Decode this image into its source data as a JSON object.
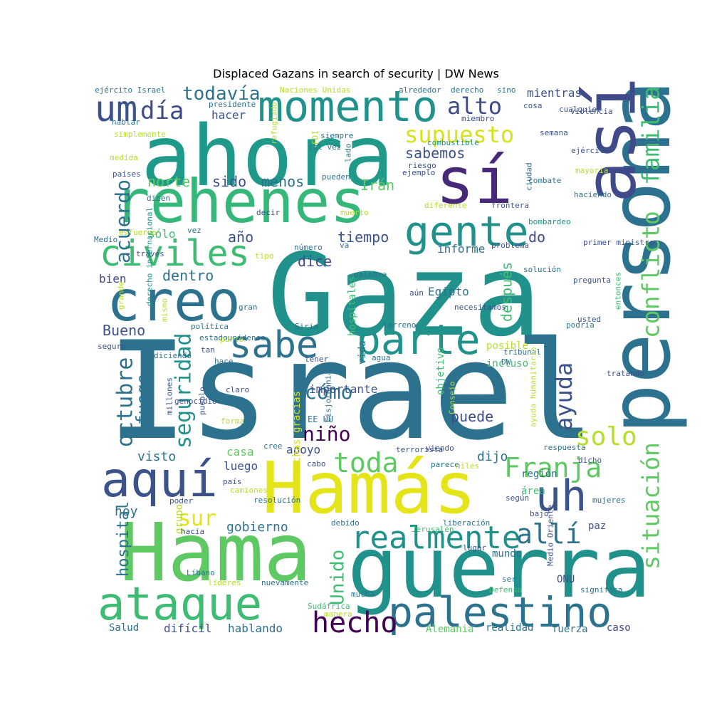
{
  "chart_data": {
    "type": "wordcloud",
    "title": "Displaced Gazans in search of security | DW News",
    "palette": [
      "#440154",
      "#3b528b",
      "#21918c",
      "#5ec962",
      "#fde725"
    ],
    "words": [
      {
        "t": "Israel",
        "c": "#2c728e",
        "h": 0
      },
      {
        "t": "Gaza",
        "c": "#21918c",
        "h": 0
      },
      {
        "t": "Hamás",
        "c": "#e5e419",
        "h": 0
      },
      {
        "t": "ahora",
        "c": "#1f9a8a",
        "h": 0
      },
      {
        "t": "Hama",
        "c": "#5ec962",
        "h": 0
      },
      {
        "t": "guerra",
        "c": "#21918c",
        "h": 0
      },
      {
        "t": "persona",
        "c": "#2c728e",
        "h": 1
      },
      {
        "t": "rehenes",
        "c": "#35b779",
        "h": 0
      },
      {
        "t": "sí",
        "c": "#482878",
        "h": 0
      },
      {
        "t": "así",
        "c": "#3e4a89",
        "h": 1
      },
      {
        "t": "creo",
        "c": "#2c728e",
        "h": 0
      },
      {
        "t": "momento",
        "c": "#21918c",
        "h": 0
      },
      {
        "t": "ataque",
        "c": "#3fbc73",
        "h": 0
      },
      {
        "t": "palestino",
        "c": "#2c728e",
        "h": 0
      },
      {
        "t": "aquí",
        "c": "#3b528b",
        "h": 0
      },
      {
        "t": "civiles",
        "c": "#3fbc73",
        "h": 0
      },
      {
        "t": "parte",
        "c": "#21918c",
        "h": 0
      },
      {
        "t": "sabe",
        "c": "#2c728e",
        "h": 0
      },
      {
        "t": "gente",
        "c": "#21918c",
        "h": 0
      },
      {
        "t": "uh",
        "c": "#3b528b",
        "h": 0
      },
      {
        "t": "um",
        "c": "#3b528b",
        "h": 0
      },
      {
        "t": "realmente",
        "c": "#21918c",
        "h": 0
      },
      {
        "t": "conflicto",
        "c": "#5ec962",
        "h": 1
      },
      {
        "t": "familia",
        "c": "#3fbc73",
        "h": 1
      },
      {
        "t": "situación",
        "c": "#5ec962",
        "h": 1
      },
      {
        "t": "Franja",
        "c": "#5ec962",
        "h": 0
      },
      {
        "t": "allí",
        "c": "#2c728e",
        "h": 0
      },
      {
        "t": "hecho",
        "c": "#440154",
        "h": 0
      },
      {
        "t": "toda",
        "c": "#5ec962",
        "h": 0
      },
      {
        "t": "solo",
        "c": "#b5de2b",
        "h": 0
      },
      {
        "t": "ayuda",
        "c": "#3b528b",
        "h": 1
      },
      {
        "t": "octubre",
        "c": "#2c728e",
        "h": 1
      },
      {
        "t": "seguridad",
        "c": "#21918c",
        "h": 1
      },
      {
        "t": "supuesto",
        "c": "#d8e219",
        "h": 0
      },
      {
        "t": "alto",
        "c": "#3e4a89",
        "h": 0
      },
      {
        "t": "día",
        "c": "#3e4a89",
        "h": 0
      },
      {
        "t": "todavía",
        "c": "#2c728e",
        "h": 0
      },
      {
        "t": "acuerdo",
        "c": "#2c728e",
        "h": 1
      },
      {
        "t": "sur",
        "c": "#e5e419",
        "h": 0
      },
      {
        "t": "niño",
        "c": "#440154",
        "h": 0
      },
      {
        "t": "cómo",
        "c": "#2c728e",
        "h": 0
      },
      {
        "t": "Unido",
        "c": "#3fbc73",
        "h": 1
      },
      {
        "t": "fuego",
        "c": "#2c728e",
        "h": 1
      },
      {
        "t": "hospital",
        "c": "#2c728e",
        "h": 1
      },
      {
        "t": "sabemos",
        "c": "#3b528b",
        "h": 0
      },
      {
        "t": "norte",
        "c": "#5ec962",
        "h": 0
      },
      {
        "t": "sido",
        "c": "#3b528b",
        "h": 0
      },
      {
        "t": "menos",
        "c": "#2c728e",
        "h": 0
      },
      {
        "t": "Irán",
        "c": "#5ec962",
        "h": 0
      },
      {
        "t": "tiempo",
        "c": "#3b528b",
        "h": 0
      },
      {
        "t": "año",
        "c": "#3b528b",
        "h": 0
      },
      {
        "t": "dice",
        "c": "#3e4a89",
        "h": 0
      },
      {
        "t": "dentro",
        "c": "#2c728e",
        "h": 0
      },
      {
        "t": "Bueno",
        "c": "#3b528b",
        "h": 0
      },
      {
        "t": "gobierno",
        "c": "#2c728e",
        "h": 0
      },
      {
        "t": "hoy",
        "c": "#2c728e",
        "h": 0
      },
      {
        "t": "visto",
        "c": "#2c728e",
        "h": 0
      },
      {
        "t": "puede",
        "c": "#3e4a89",
        "h": 0
      },
      {
        "t": "dijo",
        "c": "#2c728e",
        "h": 0
      },
      {
        "t": "mientras",
        "c": "#3b528b",
        "h": 0
      },
      {
        "t": "después",
        "c": "#3fbc73",
        "h": 1
      },
      {
        "t": "do",
        "c": "#3e4a89",
        "h": 0
      },
      {
        "t": "importante",
        "c": "#3b528b",
        "h": 0
      },
      {
        "t": "apoyo",
        "c": "#3b528b",
        "h": 0
      },
      {
        "t": "luego",
        "c": "#3b528b",
        "h": 0
      },
      {
        "t": "casa",
        "c": "#5ec962",
        "h": 0
      },
      {
        "t": "informe",
        "c": "#2c728e",
        "h": 0
      },
      {
        "t": "Egipto",
        "c": "#2c728e",
        "h": 0
      },
      {
        "t": "hacer",
        "c": "#3b528b",
        "h": 0
      },
      {
        "t": "sólo",
        "c": "#3fbc73",
        "h": 0
      },
      {
        "t": "bien",
        "c": "#3e4a89",
        "h": 0
      },
      {
        "t": "hablando",
        "c": "#2c728e",
        "h": 0
      },
      {
        "t": "difícil",
        "c": "#3b528b",
        "h": 0
      },
      {
        "t": "Alemania",
        "c": "#5ec962",
        "h": 0
      },
      {
        "t": "fuerza",
        "c": "#2c728e",
        "h": 0
      },
      {
        "t": "caso",
        "c": "#3e4a89",
        "h": 0
      },
      {
        "t": "ONU",
        "c": "#3b528b",
        "h": 0
      },
      {
        "t": "mundo",
        "c": "#2c728e",
        "h": 0
      },
      {
        "t": "posible",
        "c": "#b5de2b",
        "h": 0
      },
      {
        "t": "incluso",
        "c": "#3fbc73",
        "h": 0
      },
      {
        "t": "región",
        "c": "#2c728e",
        "h": 0
      },
      {
        "t": "área",
        "c": "#3fbc73",
        "h": 0
      },
      {
        "t": "paz",
        "c": "#3b528b",
        "h": 0
      },
      {
        "t": "grupo",
        "c": "#b5de2b",
        "h": 1
      },
      {
        "t": "vida",
        "c": "#2c728e",
        "h": 1
      },
      {
        "t": "objetivo",
        "c": "#3fbc73",
        "h": 1
      },
      {
        "t": "hospitales",
        "c": "#3fbc73",
        "h": 1
      },
      {
        "t": "muchas gracias",
        "c": "#d8e219",
        "h": 1
      },
      {
        "t": "EE UU",
        "c": "#2c728e",
        "h": 0
      },
      {
        "t": "ejército Israel",
        "c": "#2c728e",
        "h": 0
      },
      {
        "t": "Naciones Unidas",
        "c": "#b5de2b",
        "h": 0
      },
      {
        "t": "alrededor",
        "c": "#2c728e",
        "h": 0
      },
      {
        "t": "derecho",
        "c": "#2c728e",
        "h": 0
      },
      {
        "t": "sino",
        "c": "#2c728e",
        "h": 0
      },
      {
        "t": "cosa",
        "c": "#3b528b",
        "h": 0
      },
      {
        "t": "cualquier",
        "c": "#3b528b",
        "h": 0
      },
      {
        "t": "violencia",
        "c": "#3b528b",
        "h": 0
      },
      {
        "t": "presidente",
        "c": "#2c728e",
        "h": 0
      },
      {
        "t": "miembro",
        "c": "#3b528b",
        "h": 0
      },
      {
        "t": "hablar",
        "c": "#2c728e",
        "h": 0
      },
      {
        "t": "simplemente",
        "c": "#b5de2b",
        "h": 0
      },
      {
        "t": "refugiado",
        "c": "#b5de2b",
        "h": 1
      },
      {
        "t": "siempre",
        "c": "#2c728e",
        "h": 0
      },
      {
        "t": "combustible",
        "c": "#21918c",
        "h": 0
      },
      {
        "t": "semana",
        "c": "#3b528b",
        "h": 0
      },
      {
        "t": "FDI",
        "c": "#b5de2b",
        "h": 1
      },
      {
        "t": "lado",
        "c": "#2c728e",
        "h": 1
      },
      {
        "t": "tal vez",
        "c": "#2c728e",
        "h": 0
      },
      {
        "t": "ejército",
        "c": "#3b528b",
        "h": 0
      },
      {
        "t": "medida",
        "c": "#b5de2b",
        "h": 0
      },
      {
        "t": "riesgo",
        "c": "#3b528b",
        "h": 0
      },
      {
        "t": "ciudad",
        "c": "#2c728e",
        "h": 1
      },
      {
        "t": "mayoría",
        "c": "#b5de2b",
        "h": 0
      },
      {
        "t": "países",
        "c": "#3b528b",
        "h": 0
      },
      {
        "t": "ejemplo",
        "c": "#3b528b",
        "h": 0
      },
      {
        "t": "pueden",
        "c": "#2c728e",
        "h": 0
      },
      {
        "t": "combate",
        "c": "#2c728e",
        "h": 0
      },
      {
        "t": "haciendo",
        "c": "#2c728e",
        "h": 0
      },
      {
        "t": "dicen",
        "c": "#2c728e",
        "h": 0
      },
      {
        "t": "decir",
        "c": "#3b528b",
        "h": 0
      },
      {
        "t": "muerto",
        "c": "#b5de2b",
        "h": 0
      },
      {
        "t": "diferente",
        "c": "#b5de2b",
        "h": 0
      },
      {
        "t": "frontera",
        "c": "#3b528b",
        "h": 0
      },
      {
        "t": "bombardeo",
        "c": "#21918c",
        "h": 0
      },
      {
        "t": "esfuerzo",
        "c": "#b5de2b",
        "h": 0
      },
      {
        "t": "vez",
        "c": "#2c728e",
        "h": 0
      },
      {
        "t": "Medio",
        "c": "#2c728e",
        "h": 0
      },
      {
        "t": "número",
        "c": "#2c728e",
        "h": 0
      },
      {
        "t": "va",
        "c": "#2c728e",
        "h": 0
      },
      {
        "t": "problema",
        "c": "#3b528b",
        "h": 0
      },
      {
        "t": "primer ministro",
        "c": "#3b528b",
        "h": 0
      },
      {
        "t": "través",
        "c": "#3b528b",
        "h": 0
      },
      {
        "t": "tipo",
        "c": "#b5de2b",
        "h": 0
      },
      {
        "t": "palabra",
        "c": "#2c728e",
        "h": 0
      },
      {
        "t": "solución",
        "c": "#2c728e",
        "h": 0
      },
      {
        "t": "pregunta",
        "c": "#3b528b",
        "h": 0
      },
      {
        "t": "seguro",
        "c": "#3b528b",
        "h": 0
      },
      {
        "t": "derecho internacional",
        "c": "#21918c",
        "h": 1
      },
      {
        "t": "grande",
        "c": "#b5de2b",
        "h": 1
      },
      {
        "t": "gran",
        "c": "#2c728e",
        "h": 0
      },
      {
        "t": "aún",
        "c": "#3b528b",
        "h": 0
      },
      {
        "t": "podría",
        "c": "#2c728e",
        "h": 0
      },
      {
        "t": "entonces",
        "c": "#3fbc73",
        "h": 1
      },
      {
        "t": "mismo",
        "c": "#b5de2b",
        "h": 1
      },
      {
        "t": "Siria",
        "c": "#2c728e",
        "h": 0
      },
      {
        "t": "terreno",
        "c": "#2c728e",
        "h": 0
      },
      {
        "t": "necesitamos",
        "c": "#3b528b",
        "h": 0
      },
      {
        "t": "usted",
        "c": "#3b528b",
        "h": 0
      },
      {
        "t": "política",
        "c": "#2c728e",
        "h": 0
      },
      {
        "t": "estadounidense",
        "c": "#2c728e",
        "h": 0
      },
      {
        "t": "punto",
        "c": "#b5de2b",
        "h": 0
      },
      {
        "t": "tan",
        "c": "#3b528b",
        "h": 0
      },
      {
        "t": "tener",
        "c": "#3b528b",
        "h": 0
      },
      {
        "t": "agua",
        "c": "#2c728e",
        "h": 0
      },
      {
        "t": "tribunal",
        "c": "#2c728e",
        "h": 0
      },
      {
        "t": "diciendo",
        "c": "#2c728e",
        "h": 0
      },
      {
        "t": "DW",
        "c": "#2c728e",
        "h": 0
      },
      {
        "t": "hace",
        "c": "#2c728e",
        "h": 0
      },
      {
        "t": "tratando",
        "c": "#3b528b",
        "h": 0
      },
      {
        "t": "claro",
        "c": "#3b528b",
        "h": 0
      },
      {
        "t": "genocidio",
        "c": "#3b528b",
        "h": 0
      },
      {
        "t": "pueblo",
        "c": "#3b528b",
        "h": 1
      },
      {
        "t": "ayuda humanitaria",
        "c": "#b5de2b",
        "h": 1
      },
      {
        "t": "Consejo",
        "c": "#b5de2b",
        "h": 1
      },
      {
        "t": "millones",
        "c": "#3b528b",
        "h": 1
      },
      {
        "t": "cree",
        "c": "#2c728e",
        "h": 0
      },
      {
        "t": "Cisjordania",
        "c": "#2c728e",
        "h": 1
      },
      {
        "t": "forma",
        "c": "#b5de2b",
        "h": 0
      },
      {
        "t": "respuesta",
        "c": "#2c728e",
        "h": 0
      },
      {
        "t": "terrorista",
        "c": "#3b528b",
        "h": 0
      },
      {
        "t": "viendo",
        "c": "#3b528b",
        "h": 0
      },
      {
        "t": "cabo",
        "c": "#3b528b",
        "h": 0
      },
      {
        "t": "parece",
        "c": "#2c728e",
        "h": 0
      },
      {
        "t": "miles",
        "c": "#b5de2b",
        "h": 0
      },
      {
        "t": "dicho",
        "c": "#3b528b",
        "h": 0
      },
      {
        "t": "país",
        "c": "#3b528b",
        "h": 0
      },
      {
        "t": "camiones",
        "c": "#b5de2b",
        "h": 0
      },
      {
        "t": "poder",
        "c": "#3b528b",
        "h": 0
      },
      {
        "t": "resolución",
        "c": "#2c728e",
        "h": 0
      },
      {
        "t": "según",
        "c": "#3b528b",
        "h": 0
      },
      {
        "t": "mujeres",
        "c": "#2c728e",
        "h": 0
      },
      {
        "t": "bajo",
        "c": "#3b528b",
        "h": 0
      },
      {
        "t": "debido",
        "c": "#2c728e",
        "h": 0
      },
      {
        "t": "liberación",
        "c": "#2c728e",
        "h": 0
      },
      {
        "t": "Jerusalén",
        "c": "#3fbc73",
        "h": 0
      },
      {
        "t": "hacia",
        "c": "#3b528b",
        "h": 0
      },
      {
        "t": "mucha",
        "c": "#2c728e",
        "h": 0
      },
      {
        "t": "Medio Oriente",
        "c": "#3b528b",
        "h": 1
      },
      {
        "t": "lugar",
        "c": "#3b528b",
        "h": 0
      },
      {
        "t": "Líbano",
        "c": "#2c728e",
        "h": 0
      },
      {
        "t": "líderes",
        "c": "#b5de2b",
        "h": 0
      },
      {
        "t": "nuevamente",
        "c": "#2c728e",
        "h": 0
      },
      {
        "t": "ser",
        "c": "#2c728e",
        "h": 0
      },
      {
        "t": "Defensa",
        "c": "#3fbc73",
        "h": 0
      },
      {
        "t": "significa",
        "c": "#2c728e",
        "h": 0
      },
      {
        "t": "Sudáfrica",
        "c": "#3fbc73",
        "h": 0
      },
      {
        "t": "manera",
        "c": "#b5de2b",
        "h": 0
      },
      {
        "t": "Salud",
        "c": "#2c728e",
        "h": 0
      },
      {
        "t": "realidad",
        "c": "#2c728e",
        "h": 0
      },
      {
        "t": "quiero decir",
        "c": "#3b528b",
        "h": 0
      }
    ]
  }
}
